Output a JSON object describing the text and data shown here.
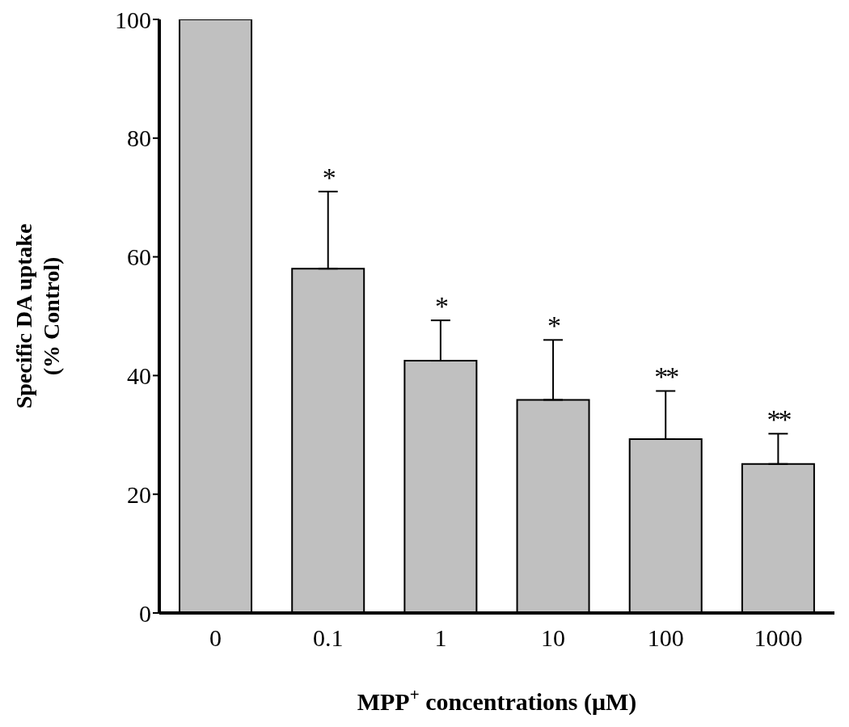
{
  "chart_data": {
    "type": "bar",
    "xlabel": "MPP$^{+}$ concentrations (μM)",
    "ylabel": "Specific DA uptake\n(% Control)",
    "categories": [
      "0",
      "0.1",
      "1",
      "10",
      "100",
      "1000"
    ],
    "values": [
      100,
      58,
      42.5,
      35.9,
      29.3,
      25.1
    ],
    "errors": [
      null,
      [
        58,
        71
      ],
      [
        42.5,
        49.3
      ],
      [
        35.9,
        46
      ],
      [
        29.3,
        37.4
      ],
      [
        25.1,
        30.2
      ]
    ],
    "color": "#c0c0c0",
    "ylim": [
      0,
      100
    ],
    "yticks": [
      0,
      20,
      40,
      60,
      80,
      100
    ],
    "grid": false,
    "annotations": [
      "*",
      "*",
      "*",
      "**",
      "**"
    ]
  }
}
